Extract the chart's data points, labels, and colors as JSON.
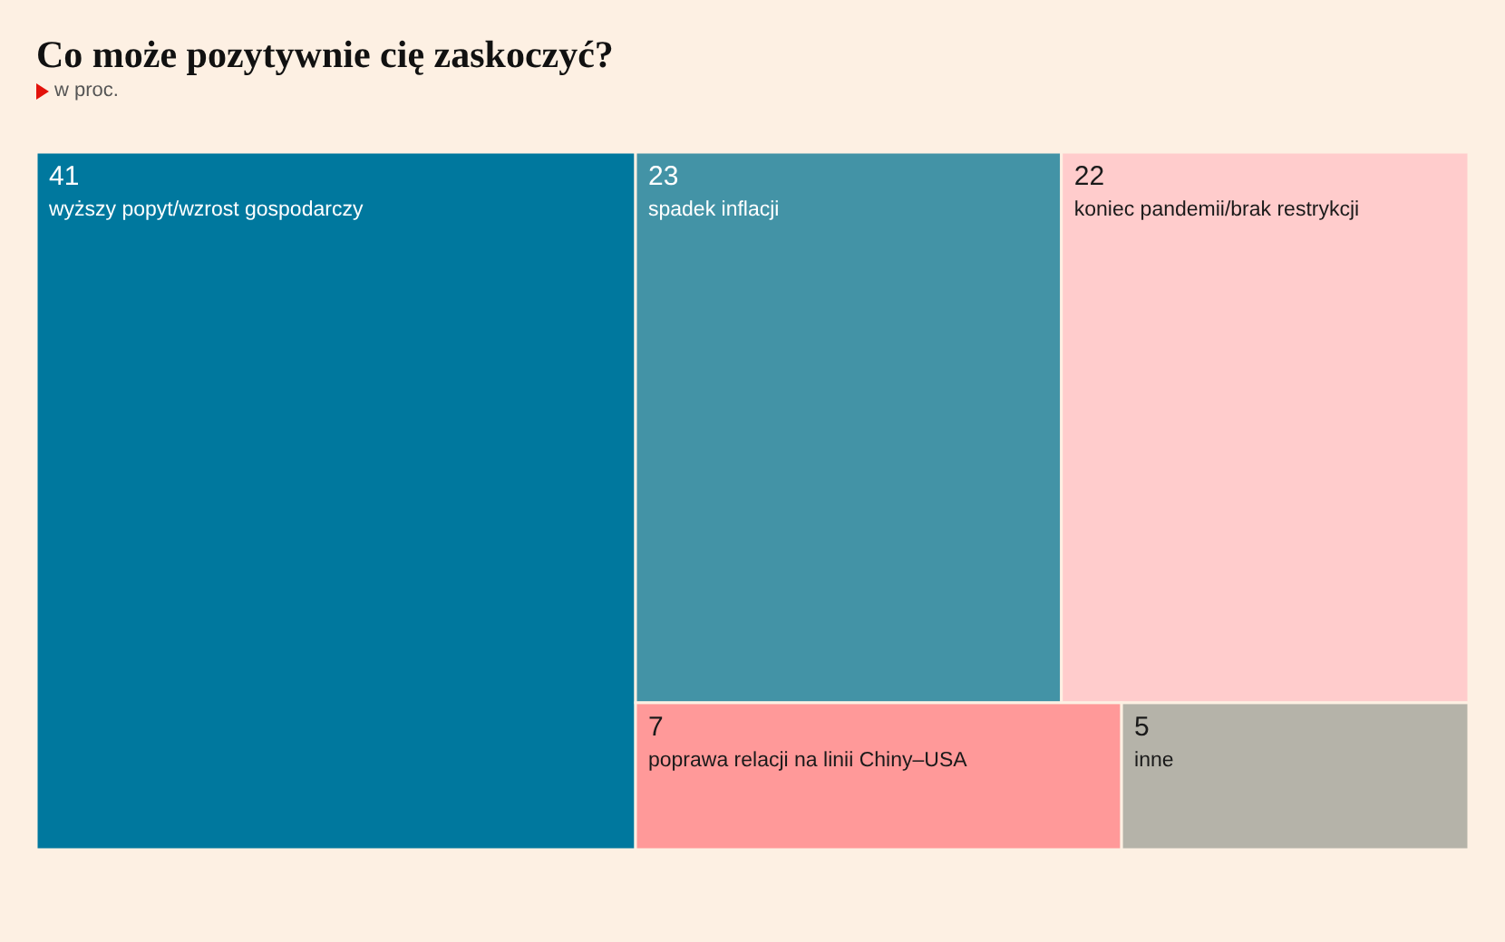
{
  "chart_data": {
    "type": "other",
    "title": "Co może pozytywnie cię zaskoczyć?",
    "subtitle": "w proc.",
    "categories": [
      "wyższy popyt/wzrost gospodarczy",
      "spadek inflacji",
      "koniec pandemii/brak restrykcji",
      "poprawa relacji na linii Chiny–USA",
      "inne"
    ],
    "values": [
      41,
      23,
      22,
      7,
      5
    ],
    "colors": [
      "#00789e",
      "#4393a6",
      "#ffcccc",
      "#ff9999",
      "#b5b3a9"
    ],
    "data_labels": true
  }
}
